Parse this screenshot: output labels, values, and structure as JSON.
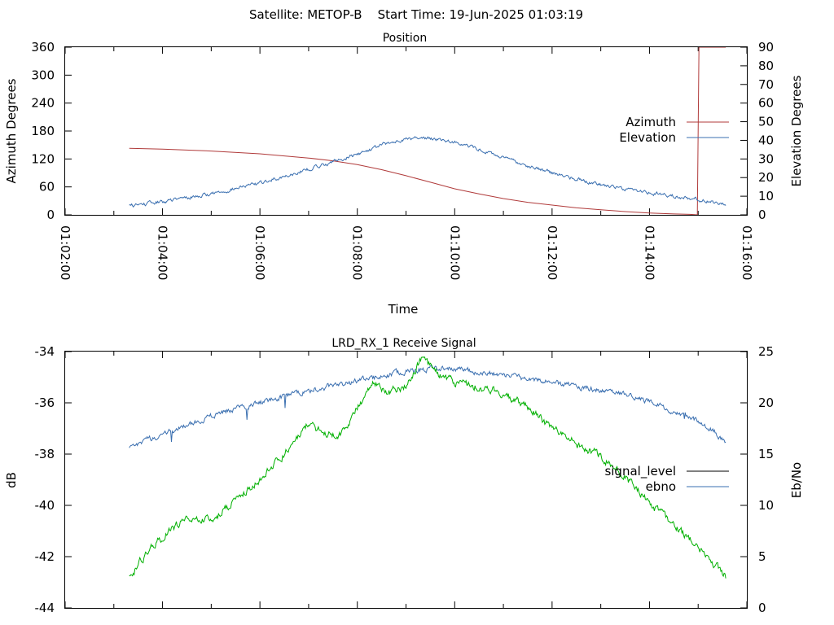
{
  "page_title": "Satellite: METOP-B    Start Time: 19-Jun-2025 01:03:19",
  "chart_data": [
    {
      "type": "line",
      "title": "Position",
      "xlabel": "Time",
      "ylabel": "Azimuth Degrees",
      "y2label": "Elevation Degrees",
      "ylim": [
        0,
        360
      ],
      "y2lim": [
        0,
        90
      ],
      "yticks": [
        0,
        60,
        120,
        180,
        240,
        300,
        360
      ],
      "y2ticks": [
        0,
        10,
        20,
        30,
        40,
        50,
        60,
        70,
        80,
        90
      ],
      "xlim": [
        "01:02:00",
        "01:16:00"
      ],
      "xticks": [
        "01:02:00",
        "01:04:00",
        "01:06:00",
        "01:08:00",
        "01:10:00",
        "01:12:00",
        "01:14:00",
        "01:16:00"
      ],
      "legend_position": "right",
      "series": [
        {
          "name": "Azimuth",
          "axis": "left",
          "color": "#b03a3a",
          "x": [
            "01:03:19",
            "01:04:00",
            "01:05:00",
            "01:06:00",
            "01:07:00",
            "01:07:30",
            "01:08:00",
            "01:08:30",
            "01:09:00",
            "01:09:30",
            "01:10:00",
            "01:10:30",
            "01:11:00",
            "01:11:30",
            "01:12:00",
            "01:12:30",
            "01:13:00",
            "01:13:30",
            "01:14:00",
            "01:14:30",
            "01:14:50",
            "01:14:59",
            "01:15:01",
            "01:15:34"
          ],
          "values": [
            143,
            141,
            137,
            131,
            122,
            116,
            108,
            97,
            84,
            70,
            56,
            45,
            35,
            27,
            21,
            15,
            11,
            7,
            4,
            2,
            1,
            0,
            360,
            360
          ]
        },
        {
          "name": "Elevation",
          "axis": "right",
          "color": "#3a6fb0",
          "x": [
            "01:03:19",
            "01:04:00",
            "01:05:00",
            "01:06:00",
            "01:07:00",
            "01:08:00",
            "01:08:30",
            "01:09:00",
            "01:09:30",
            "01:10:00",
            "01:10:30",
            "01:11:00",
            "01:12:00",
            "01:13:00",
            "01:14:00",
            "01:15:00",
            "01:15:34"
          ],
          "values": [
            4.8,
            7,
            11.3,
            17,
            24.5,
            32.5,
            37.5,
            40.8,
            41.3,
            39.2,
            35.1,
            30.5,
            22.5,
            16.3,
            12,
            8.2,
            5.5
          ]
        }
      ]
    },
    {
      "type": "line",
      "title": "LRD_RX_1 Receive Signal",
      "xlabel": "",
      "ylabel": "dB",
      "y2label": "Eb/No",
      "ylim": [
        -44,
        -34
      ],
      "y2lim": [
        0,
        25
      ],
      "yticks": [
        -44,
        -42,
        -40,
        -38,
        -36,
        -34
      ],
      "y2ticks": [
        0,
        5,
        10,
        15,
        20,
        25
      ],
      "xlim": [
        "01:02:00",
        "01:16:00"
      ],
      "legend_position": "right",
      "series": [
        {
          "name": "signal_level",
          "axis": "left",
          "color": "#000000",
          "x": [],
          "values": []
        },
        {
          "name": "ebno",
          "axis": "right",
          "color": "#3a6fb0",
          "x": [
            "01:03:19",
            "01:03:40",
            "01:04:00",
            "01:04:30",
            "01:05:00",
            "01:05:30",
            "01:06:00",
            "01:06:30",
            "01:07:00",
            "01:07:30",
            "01:08:00",
            "01:08:30",
            "01:09:00",
            "01:09:30",
            "01:10:00",
            "01:10:30",
            "01:11:00",
            "01:11:30",
            "01:12:00",
            "01:12:30",
            "01:13:00",
            "01:13:30",
            "01:14:00",
            "01:14:30",
            "01:15:00",
            "01:15:20",
            "01:15:34"
          ],
          "values": [
            15.5,
            16.3,
            17,
            17.8,
            18.7,
            19.5,
            20,
            20.6,
            21.2,
            21.7,
            22.1,
            22.6,
            23,
            23.4,
            23.3,
            23,
            22.7,
            22.3,
            22,
            21.6,
            21.2,
            20.8,
            20.1,
            19.2,
            18.2,
            17.2,
            16.1
          ]
        },
        {
          "name": "",
          "axis": "left",
          "color": "#00b000",
          "x": [
            "01:03:19",
            "01:03:30",
            "01:04:00",
            "01:04:30",
            "01:05:00",
            "01:05:30",
            "01:06:00",
            "01:06:30",
            "01:07:00",
            "01:07:20",
            "01:07:40",
            "01:08:00",
            "01:08:20",
            "01:08:40",
            "01:09:00",
            "01:09:10",
            "01:09:20",
            "01:09:40",
            "01:10:00",
            "01:10:30",
            "01:11:00",
            "01:11:30",
            "01:12:00",
            "01:12:30",
            "01:13:00",
            "01:13:30",
            "01:14:00",
            "01:14:30",
            "01:15:00",
            "01:15:20",
            "01:15:34"
          ],
          "values": [
            -42.8,
            -42.3,
            -41.2,
            -40.5,
            -40.6,
            -39.8,
            -39,
            -38,
            -36.8,
            -37.2,
            -37.2,
            -36.2,
            -35.2,
            -35.6,
            -35.3,
            -34.8,
            -34.2,
            -34.9,
            -35.2,
            -35.4,
            -35.6,
            -36.2,
            -37,
            -37.6,
            -38.1,
            -38.9,
            -39.9,
            -40.8,
            -41.6,
            -42.3,
            -42.8
          ]
        }
      ]
    }
  ]
}
